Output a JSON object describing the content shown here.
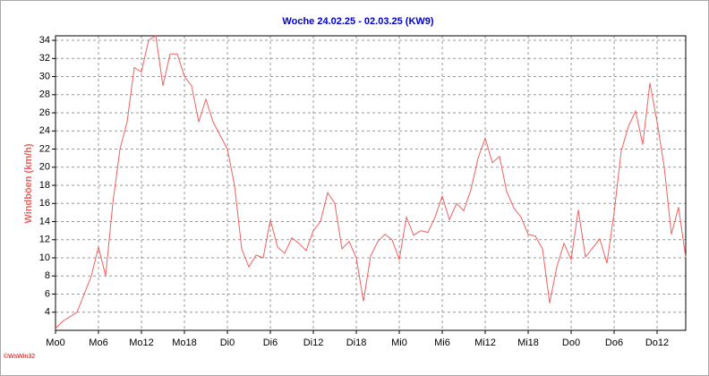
{
  "chart_data": {
    "type": "line",
    "title": "Woche 24.02.25 - 02.03.25 (KW9)",
    "y_label": "Windböen (km/h)",
    "credit": "©WsWin32",
    "x": [
      0,
      1,
      2,
      3,
      4,
      5,
      6,
      7,
      8,
      9,
      10,
      11,
      12,
      13,
      14,
      15,
      16,
      17,
      18,
      19,
      20,
      21,
      22,
      23,
      24,
      25,
      26,
      27,
      28,
      29,
      30,
      31,
      32,
      33,
      34,
      35,
      36,
      37,
      38,
      39,
      40,
      41,
      42,
      43,
      44,
      45,
      46,
      47,
      48,
      49,
      50,
      51,
      52,
      53,
      54,
      55,
      56,
      57,
      58,
      59,
      60,
      61,
      62,
      63,
      64,
      65,
      66,
      67,
      68,
      69,
      70,
      71,
      72,
      73,
      74,
      75,
      76,
      77,
      78,
      79,
      80,
      81,
      82,
      83,
      84,
      85,
      86,
      87,
      88
    ],
    "series": [
      {
        "name": "Windböen",
        "color": "#f06060",
        "values": [
          2.2,
          3,
          3.5,
          4,
          6,
          8,
          11.2,
          8,
          16,
          22,
          25,
          31,
          30.5,
          34,
          34.5,
          29,
          32.5,
          32.5,
          30,
          29,
          25,
          27.5,
          25,
          23.5,
          22,
          18,
          11,
          9,
          10.3,
          10,
          14.2,
          11.2,
          10.5,
          12.2,
          11.6,
          10.8,
          13,
          14,
          17.2,
          16,
          11,
          11.8,
          10,
          5.2,
          10.2,
          11.8,
          12.6,
          12,
          9.8,
          14.5,
          12.5,
          13,
          12.8,
          14.5,
          16.8,
          14.2,
          16,
          15.2,
          17.5,
          21,
          23.2,
          20.5,
          21.2,
          17.3,
          15.5,
          14.5,
          12.6,
          12.4,
          11,
          5,
          9,
          11.6,
          9.8,
          15.3,
          10.1,
          11.1,
          12.1,
          9.4,
          15,
          21.8,
          24.5,
          26.2,
          22.5,
          29.3,
          25,
          20,
          12.6,
          15.6,
          10
        ]
      }
    ],
    "xlim": [
      0,
      88
    ],
    "xticks": [
      {
        "value": 0,
        "label": "Mo0"
      },
      {
        "value": 6,
        "label": "Mo6"
      },
      {
        "value": 12,
        "label": "Mo12"
      },
      {
        "value": 18,
        "label": "Mo18"
      },
      {
        "value": 24,
        "label": "Di0"
      },
      {
        "value": 30,
        "label": "Di6"
      },
      {
        "value": 36,
        "label": "Di12"
      },
      {
        "value": 42,
        "label": "Di18"
      },
      {
        "value": 48,
        "label": "Mi0"
      },
      {
        "value": 54,
        "label": "Mi6"
      },
      {
        "value": 60,
        "label": "Mi12"
      },
      {
        "value": 66,
        "label": "Mi18"
      },
      {
        "value": 72,
        "label": "Do0"
      },
      {
        "value": 78,
        "label": "Do6"
      },
      {
        "value": 84,
        "label": "Do12"
      }
    ],
    "ylim": [
      2,
      34.5
    ],
    "yticks": [
      4,
      6,
      8,
      10,
      12,
      14,
      16,
      18,
      20,
      22,
      24,
      26,
      28,
      30,
      32,
      34
    ],
    "grid": true
  }
}
